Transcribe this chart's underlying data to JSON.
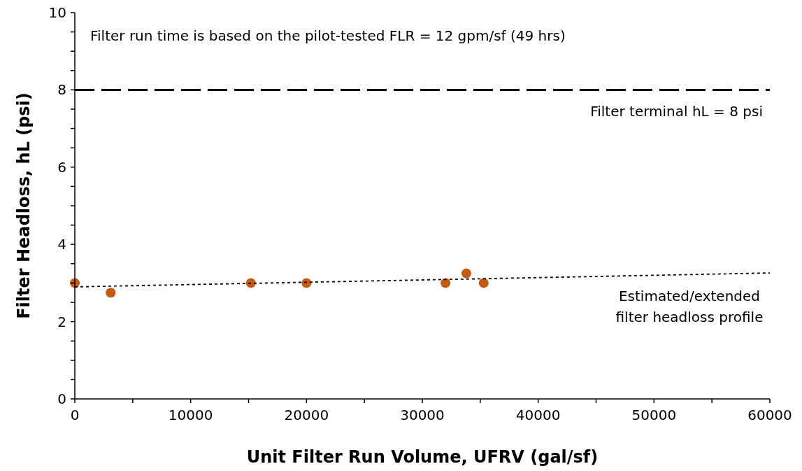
{
  "chart_data": {
    "type": "scatter",
    "xlabel": "Unit Filter Run Volume, UFRV (gal/sf)",
    "ylabel": "Filter Headloss, hL (psi)",
    "xlim": [
      0,
      60000
    ],
    "ylim": [
      0,
      10
    ],
    "xticks": [
      0,
      {
        "value": 5000,
        "label": null
      },
      10000,
      {
        "value": 15000,
        "label": null
      },
      20000,
      {
        "value": 25000,
        "label": null
      },
      30000,
      {
        "value": 35000,
        "label": null
      },
      40000,
      {
        "value": 45000,
        "label": null
      },
      50000,
      {
        "value": 55000,
        "label": null
      },
      60000
    ],
    "yticks": [
      0,
      {
        "value": 0.5,
        "label": null
      },
      {
        "value": 1,
        "label": null
      },
      {
        "value": 1.5,
        "label": null
      },
      2,
      {
        "value": 2.5,
        "label": null
      },
      {
        "value": 3,
        "label": null
      },
      {
        "value": 3.5,
        "label": null
      },
      4,
      {
        "value": 4.5,
        "label": null
      },
      {
        "value": 5,
        "label": null
      },
      {
        "value": 5.5,
        "label": null
      },
      6,
      {
        "value": 6.5,
        "label": null
      },
      {
        "value": 7,
        "label": null
      },
      {
        "value": 7.5,
        "label": null
      },
      8,
      {
        "value": 8.5,
        "label": null
      },
      {
        "value": 9,
        "label": null
      },
      {
        "value": 9.5,
        "label": null
      },
      10
    ],
    "grid": false,
    "series": [
      {
        "color": "#c55a11",
        "marker": "circle",
        "x": [
          0,
          3100,
          15200,
          20000,
          32000,
          33800,
          35300
        ],
        "values": [
          3.0,
          2.75,
          3.0,
          3.0,
          3.0,
          3.25,
          3.0
        ]
      },
      {
        "type": "line",
        "color": "#000000",
        "marker": "none",
        "line_style": "dotted",
        "x": [
          0,
          60000
        ],
        "values": [
          2.9,
          3.26
        ]
      }
    ],
    "ref_lines": [
      {
        "axis": "y",
        "value": 8,
        "label": "Filter terminal hL = 8 psi",
        "color": "#000000",
        "line_style": "dashed"
      }
    ],
    "annotations": [
      "Filter run time is based on the pilot-tested FLR = 12 gpm/sf  (49 hrs)",
      {
        "text": "Estimated/extended\nfilter headloss profile",
        "x": 60000,
        "y": 3.26
      }
    ]
  }
}
